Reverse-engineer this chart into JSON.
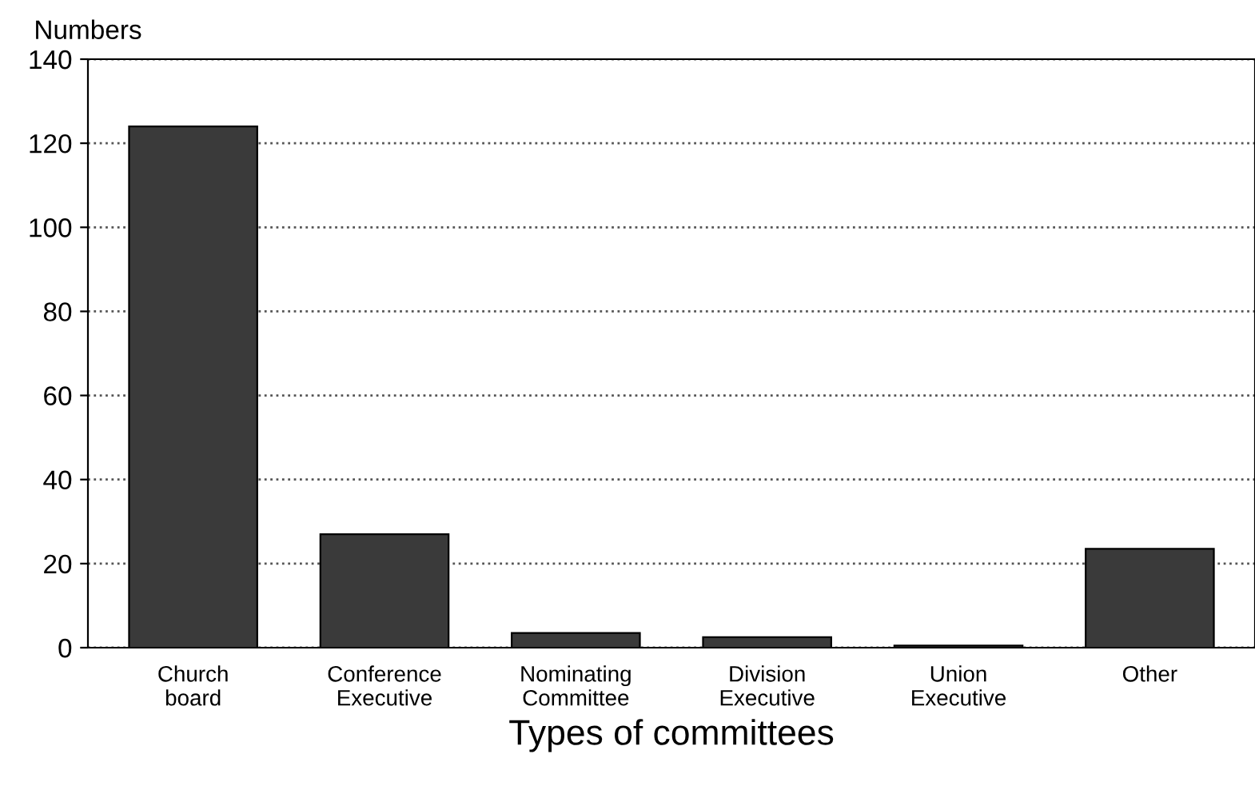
{
  "chart_data": {
    "type": "bar",
    "ylabel": "Numbers",
    "xlabel": "Types of committees",
    "categories": [
      "Church\nboard",
      "Conference\nExecutive",
      "Nominating\nCommittee",
      "Division\nExecutive",
      "Union\nExecutive",
      "Other"
    ],
    "values": [
      124,
      27,
      3.5,
      2.5,
      0.5,
      23.5
    ],
    "color": "#3a3a3a",
    "ylim": [
      0,
      140
    ],
    "yticks": [
      0,
      20,
      40,
      60,
      80,
      100,
      120,
      140
    ],
    "grid": "y",
    "line_style": "dotted"
  }
}
